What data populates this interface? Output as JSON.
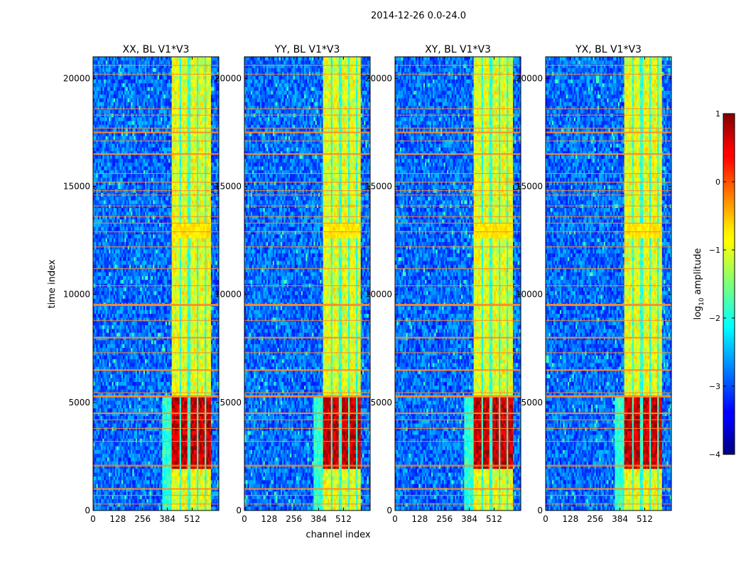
{
  "chart_data": {
    "type": "heatmap",
    "suptitle": "2014-12-26 0.0-24.0",
    "xlabel": "channel index",
    "ylabel": "time index",
    "xlim": [
      0,
      650
    ],
    "ylim": [
      0,
      21000
    ],
    "xticks": [
      0,
      128,
      256,
      384,
      512
    ],
    "yticks": [
      0,
      5000,
      10000,
      15000,
      20000
    ],
    "colorbar": {
      "label": "log",
      "label_sub": "10",
      "label_tail": " amplitude",
      "range": [
        -4,
        1
      ],
      "ticks": [
        "1",
        "0",
        "−1",
        "−2",
        "−3",
        "−4"
      ]
    },
    "panels": [
      {
        "title": "XX, BL V1*V3",
        "bright_band": [
          410,
          610
        ],
        "strong_start": 410
      },
      {
        "title": "YY, BL V1*V3",
        "bright_band": [
          410,
          605
        ],
        "strong_start": 410
      },
      {
        "title": "XY, BL V1*V3",
        "bright_band": [
          410,
          610
        ],
        "strong_start": 410
      },
      {
        "title": "YX, BL V1*V3",
        "bright_band": [
          410,
          605
        ],
        "strong_start": 410
      }
    ],
    "flagged_rows": [
      300,
      700,
      1000,
      2050,
      2100,
      3200,
      3800,
      4200,
      4500,
      5250,
      5300,
      5450,
      6500,
      7300,
      8000,
      8800,
      9500,
      9550,
      10400,
      11200,
      12200,
      12900,
      13300,
      13600,
      14100,
      14600,
      14800,
      15200,
      15600,
      16500,
      17100,
      17500,
      17700,
      18300,
      18600,
      20200,
      20600
    ],
    "vertical_gaps": [
      450,
      495,
      540,
      580
    ],
    "value_regions": [
      {
        "t": [
          0,
          5200
        ],
        "level": 0.6
      },
      {
        "t": [
          5200,
          21000
        ],
        "level": -1.2
      }
    ]
  }
}
